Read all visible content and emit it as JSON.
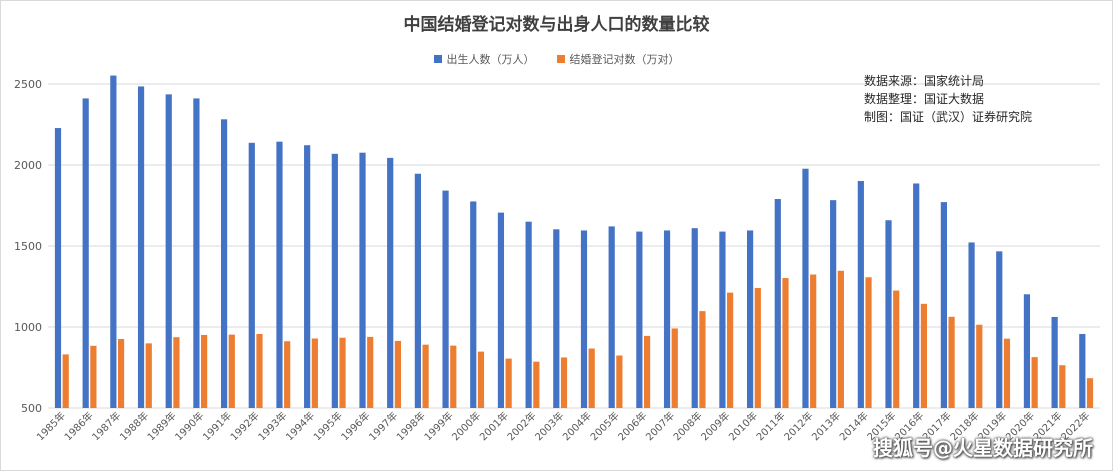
{
  "chart_data": {
    "type": "bar",
    "title": "中国结婚登记对数与出身人口的数量比较",
    "categories": [
      "1985年",
      "1986年",
      "1987年",
      "1988年",
      "1989年",
      "1990年",
      "1991年",
      "1992年",
      "1993年",
      "1994年",
      "1995年",
      "1996年",
      "1997年",
      "1998年",
      "1999年",
      "2000年",
      "2001年",
      "2002年",
      "2003年",
      "2004年",
      "2005年",
      "2006年",
      "2007年",
      "2008年",
      "2009年",
      "2010年",
      "2011年",
      "2012年",
      "2013年",
      "2014年",
      "2015年",
      "2016年",
      "2017年",
      "2018年",
      "2019年",
      "2020年",
      "2021年",
      "2022年"
    ],
    "series": [
      {
        "name": "出生人数（万人）",
        "color": "#4472c4",
        "values": [
          2228,
          2411,
          2552,
          2485,
          2436,
          2411,
          2282,
          2137,
          2144,
          2122,
          2069,
          2076,
          2044,
          1946,
          1842,
          1775,
          1706,
          1650,
          1603,
          1596,
          1621,
          1589,
          1596,
          1610,
          1589,
          1596,
          1790,
          1977,
          1783,
          1901,
          1659,
          1886,
          1771,
          1522,
          1467,
          1202,
          1062,
          957
        ]
      },
      {
        "name": "结婚登记对数（万对）",
        "color": "#ed7d31",
        "values": [
          831,
          884,
          926,
          899,
          937,
          951,
          953,
          957,
          912,
          929,
          934,
          939,
          914,
          891,
          885,
          848,
          805,
          786,
          812,
          867,
          824,
          945,
          991,
          1098,
          1212,
          1241,
          1302,
          1324,
          1347,
          1307,
          1225,
          1143,
          1063,
          1014,
          928,
          814,
          764,
          684
        ]
      }
    ],
    "ylim": [
      500,
      2500
    ],
    "yticks": [
      500,
      1000,
      1500,
      2000,
      2500
    ],
    "grid": true,
    "legend": "top-center"
  },
  "source_note": {
    "line1": "数据来源：国家统计局",
    "line2": "数据整理：国证大数据",
    "line3": "制图：国证（武汉）证券研究院"
  },
  "watermark": "搜狐号@火星数据研究所"
}
